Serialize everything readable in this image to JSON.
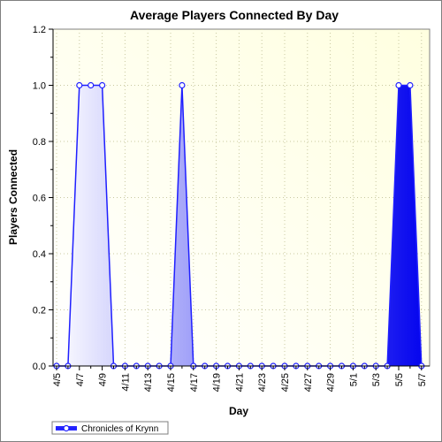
{
  "chart_data": {
    "type": "area",
    "title": "Average Players Connected By Day",
    "xlabel": "Day",
    "ylabel": "Players Connected",
    "ylim": [
      0,
      1.2
    ],
    "yticks": [
      "0.0",
      "0.2",
      "0.4",
      "0.6",
      "0.8",
      "1.0",
      "1.2"
    ],
    "x": [
      "4/5",
      "4/6",
      "4/7",
      "4/8",
      "4/9",
      "4/10",
      "4/11",
      "4/12",
      "4/13",
      "4/14",
      "4/15",
      "4/16",
      "4/17",
      "4/18",
      "4/19",
      "4/20",
      "4/21",
      "4/22",
      "4/23",
      "4/24",
      "4/25",
      "4/26",
      "4/27",
      "4/28",
      "4/29",
      "4/30",
      "5/1",
      "5/2",
      "5/3",
      "5/4",
      "5/5",
      "5/6",
      "5/7"
    ],
    "x_tick_labels": [
      "4/5",
      "4/7",
      "4/9",
      "4/11",
      "4/13",
      "4/15",
      "4/17",
      "4/19",
      "4/21",
      "4/23",
      "4/25",
      "4/27",
      "4/29",
      "5/1",
      "5/3",
      "5/5",
      "5/7"
    ],
    "series": [
      {
        "name": "Chronicles of Krynn",
        "values": [
          0,
          0,
          1,
          1,
          1,
          0,
          0,
          0,
          0,
          0,
          0,
          1,
          0,
          0,
          0,
          0,
          0,
          0,
          0,
          0,
          0,
          0,
          0,
          0,
          0,
          0,
          0,
          0,
          0,
          0,
          1,
          1,
          0
        ]
      }
    ],
    "grid": true,
    "legend_position": "bottom-left",
    "colors": {
      "line": "#1f1fff",
      "fill_dark": "#0000ee",
      "fill_light": "#ffffff",
      "plot_bg_light": "#ffffe0"
    }
  }
}
